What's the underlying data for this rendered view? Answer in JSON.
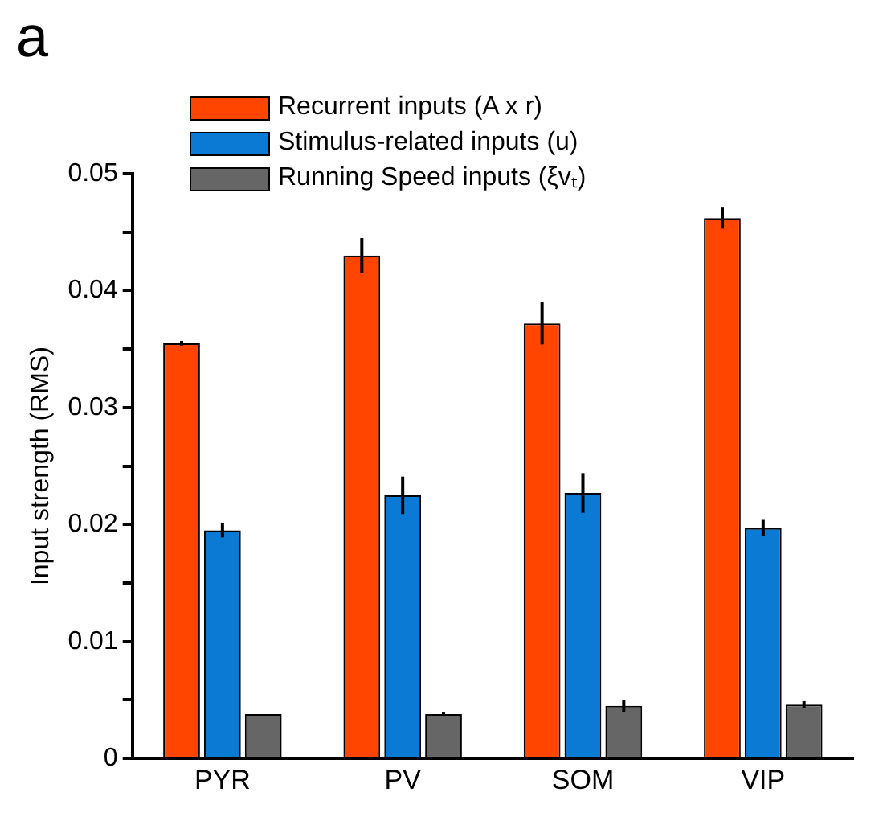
{
  "chart_data": {
    "type": "bar",
    "annotations": [
      "a"
    ],
    "ylabel": "Input strength (RMS)",
    "categories": [
      "PYR",
      "PV",
      "SOM",
      "VIP"
    ],
    "series": [
      {
        "name": "Recurrent inputs (A x r)",
        "color": "#ff4500",
        "values": [
          0.0355,
          0.043,
          0.0372,
          0.0462
        ],
        "errors": [
          0.0002,
          0.0015,
          0.0018,
          0.0009
        ]
      },
      {
        "name": "Stimulus-related inputs (u)",
        "color": "#0a7ad4",
        "values": [
          0.0195,
          0.0225,
          0.0227,
          0.0197
        ],
        "errors": [
          0.0006,
          0.0016,
          0.0017,
          0.0007
        ]
      },
      {
        "name": "Running Speed inputs (ξvₜ)",
        "color": "#666666",
        "values": [
          0.0038,
          0.0038,
          0.0045,
          0.0046
        ],
        "errors": [
          null,
          0.0002,
          0.0005,
          0.0003
        ]
      }
    ],
    "ylim": [
      0,
      0.05
    ],
    "yticks": [
      0,
      {
        "value": 0.005,
        "label": null
      },
      0.01,
      {
        "value": 0.015,
        "label": null
      },
      0.02,
      {
        "value": 0.025,
        "label": null
      },
      0.03,
      {
        "value": 0.035,
        "label": null
      },
      0.04,
      {
        "value": 0.045,
        "label": null
      },
      0.05
    ],
    "grid": false,
    "legend": "top"
  }
}
